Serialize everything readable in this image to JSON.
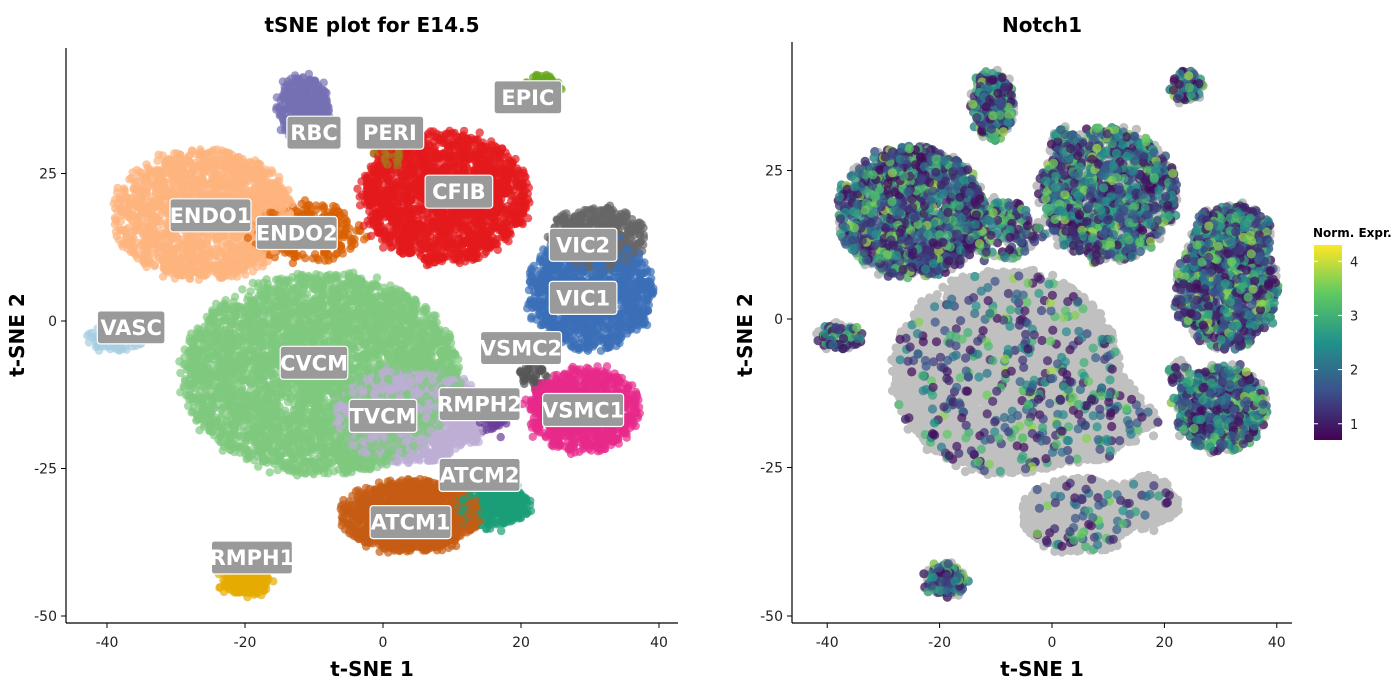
{
  "chart_data": [
    {
      "type": "scatter",
      "title": "tSNE plot for E14.5",
      "xlabel": "t-SNE 1",
      "ylabel": "t-SNE 2",
      "xlim": [
        -45,
        43
      ],
      "ylim": [
        -52,
        44
      ],
      "xticks": [
        -40,
        -20,
        0,
        20,
        40
      ],
      "yticks": [
        25,
        0,
        -25,
        -50
      ],
      "grid": false,
      "legend": "none",
      "clusters": [
        {
          "name": "RBC",
          "color": "#7570b3",
          "center": [
            -11.5,
            36
          ],
          "spread": [
            3.5,
            5.5
          ],
          "n": 420
        },
        {
          "name": "PERI",
          "color": "#a6761d",
          "center": [
            1,
            29
          ],
          "spread": [
            1.8,
            3
          ],
          "n": 120
        },
        {
          "name": "EPIC",
          "color": "#66a61e",
          "center": [
            23,
            39
          ],
          "spread": [
            2.5,
            2.5
          ],
          "n": 140
        },
        {
          "name": "CFIB",
          "color": "#e41a1c",
          "center": [
            9,
            21
          ],
          "spread": [
            12,
            11
          ],
          "n": 1800
        },
        {
          "name": "ENDO1",
          "color": "#fdb47e",
          "center": [
            -26,
            18
          ],
          "spread": [
            13,
            11
          ],
          "n": 1600
        },
        {
          "name": "ENDO2",
          "color": "#d95f02",
          "center": [
            -11,
            15
          ],
          "spread": [
            8,
            5
          ],
          "n": 260
        },
        {
          "name": "VIC2",
          "color": "#666666",
          "center": [
            31,
            14
          ],
          "spread": [
            7,
            5
          ],
          "n": 500
        },
        {
          "name": "VIC1",
          "color": "#3a6fb8",
          "center": [
            30,
            5
          ],
          "spread": [
            9,
            10
          ],
          "n": 1200
        },
        {
          "name": "VASC",
          "color": "#a6cee3",
          "center": [
            -39,
            -3
          ],
          "spread": [
            4,
            2
          ],
          "n": 110
        },
        {
          "name": "CVCM",
          "color": "#7fc97f",
          "center": [
            -9,
            -9
          ],
          "spread": [
            20,
            17
          ],
          "n": 4200
        },
        {
          "name": "TVCM",
          "color": "#beaed4",
          "center": [
            4,
            -16
          ],
          "spread": [
            11,
            8
          ],
          "n": 1300
        },
        {
          "name": "RMPH2",
          "color": "#6a3d9a",
          "center": [
            16,
            -17
          ],
          "spread": [
            2,
            2
          ],
          "n": 40
        },
        {
          "name": "VSMC2",
          "color": "#555555",
          "center": [
            22,
            -9
          ],
          "spread": [
            2,
            2
          ],
          "n": 40
        },
        {
          "name": "VSMC1",
          "color": "#e7298a",
          "center": [
            29,
            -15
          ],
          "spread": [
            8,
            7
          ],
          "n": 900
        },
        {
          "name": "ATCM2",
          "color": "#1b9e77",
          "center": [
            16,
            -31
          ],
          "spread": [
            5,
            4
          ],
          "n": 380
        },
        {
          "name": "ATCM1",
          "color": "#c65d14",
          "center": [
            4,
            -33
          ],
          "spread": [
            10,
            6
          ],
          "n": 1200
        },
        {
          "name": "RMPH1",
          "color": "#e6ab02",
          "center": [
            -20,
            -44
          ],
          "spread": [
            3.5,
            2.5
          ],
          "n": 180
        }
      ],
      "labels": [
        {
          "text": "RBC",
          "x": -10,
          "y": 32
        },
        {
          "text": "PERI",
          "x": 1,
          "y": 32
        },
        {
          "text": "EPIC",
          "x": 21,
          "y": 38
        },
        {
          "text": "CFIB",
          "x": 11,
          "y": 22
        },
        {
          "text": "ENDO1",
          "x": -25,
          "y": 18
        },
        {
          "text": "ENDO2",
          "x": -12.5,
          "y": 15
        },
        {
          "text": "VIC2",
          "x": 29,
          "y": 13
        },
        {
          "text": "VIC1",
          "x": 29,
          "y": 4
        },
        {
          "text": "VASC",
          "x": -36.5,
          "y": -1
        },
        {
          "text": "CVCM",
          "x": -10,
          "y": -7
        },
        {
          "text": "TVCM",
          "x": 0,
          "y": -16
        },
        {
          "text": "RMPH2",
          "x": 14,
          "y": -14
        },
        {
          "text": "VSMC2",
          "x": 20,
          "y": -4.5
        },
        {
          "text": "VSMC1",
          "x": 29,
          "y": -15
        },
        {
          "text": "ATCM2",
          "x": 14,
          "y": -26
        },
        {
          "text": "ATCM1",
          "x": 4,
          "y": -34
        },
        {
          "text": "RMPH1",
          "x": -19,
          "y": -40
        }
      ]
    },
    {
      "type": "scatter",
      "title": "Notch1",
      "xlabel": "t-SNE 1",
      "ylabel": "t-SNE 2",
      "xlim": [
        -46,
        42
      ],
      "ylim": [
        -52,
        44
      ],
      "xticks": [
        -40,
        -20,
        0,
        20,
        40
      ],
      "yticks": [
        25,
        0,
        -25,
        -50
      ],
      "grid": false,
      "background_point_color": "#c0c0c0",
      "colorbar": {
        "title": "Norm. Expr.",
        "range": [
          0.7,
          4.3
        ],
        "ticks": [
          1,
          2,
          3,
          4
        ],
        "colors": [
          "#440154",
          "#3b528b",
          "#21918c",
          "#5ec962",
          "#fde725"
        ]
      },
      "expression_fraction_by_region": [
        {
          "region": "ENDO",
          "fraction": 0.75
        },
        {
          "region": "CFIB",
          "fraction": 0.55
        },
        {
          "region": "VIC",
          "fraction": 0.6
        },
        {
          "region": "VSMC",
          "fraction": 0.6
        },
        {
          "region": "VASC",
          "fraction": 0.7
        },
        {
          "region": "RMPH1",
          "fraction": 0.6
        },
        {
          "region": "CVCM",
          "fraction": 0.07
        },
        {
          "region": "TVCM/ATCM",
          "fraction": 0.05
        }
      ]
    }
  ]
}
